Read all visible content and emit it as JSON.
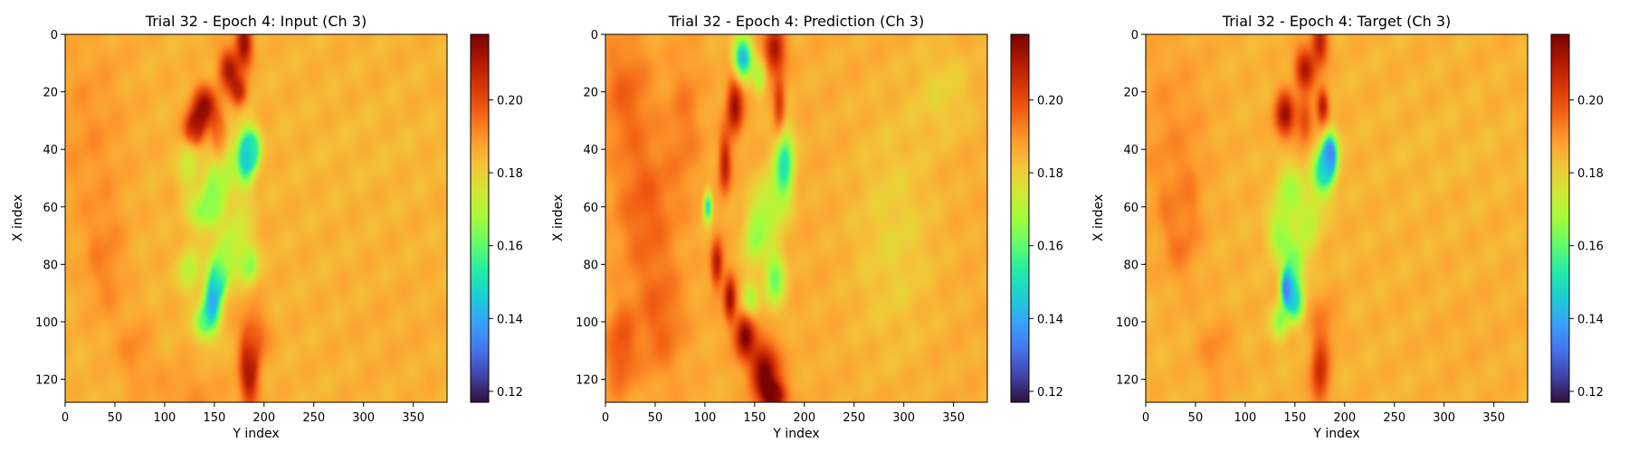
{
  "figure": {
    "colormap": [
      "#30123b",
      "#4145ab",
      "#4675ed",
      "#39a2fc",
      "#1bcfd4",
      "#24eca6",
      "#61fc6c",
      "#a4fc3b",
      "#d1e834",
      "#f3c63a",
      "#fe9b2d",
      "#f36315",
      "#d93806",
      "#b11901",
      "#7a0402"
    ],
    "color_range": [
      0.117,
      0.218
    ]
  },
  "chart_data": [
    {
      "type": "heatmap",
      "title": "Trial 32 - Epoch 4: Input (Ch 3)",
      "xlabel": "Y index",
      "ylabel": "X index",
      "xlim": [
        0,
        384
      ],
      "ylim": [
        128,
        0
      ],
      "xticks": [
        "0",
        "50",
        "100",
        "150",
        "200",
        "250",
        "300",
        "350"
      ],
      "yticks": [
        "0",
        "20",
        "40",
        "60",
        "80",
        "100",
        "120"
      ],
      "colorbar_ticks": [
        "0.12",
        "0.14",
        "0.16",
        "0.18",
        "0.20"
      ],
      "field": {
        "background": 0.185,
        "features": [
          {
            "x": 25,
            "y": 35,
            "value": 0.19,
            "rx": 40,
            "ry": 35
          },
          {
            "x": 40,
            "y": 80,
            "value": 0.192,
            "rx": 20,
            "ry": 20
          },
          {
            "x": 70,
            "y": 110,
            "value": 0.191,
            "rx": 18,
            "ry": 12
          },
          {
            "x": 120,
            "y": 125,
            "value": 0.19,
            "rx": 40,
            "ry": 10
          },
          {
            "x": 180,
            "y": 3,
            "value": 0.215,
            "rx": 8,
            "ry": 8
          },
          {
            "x": 165,
            "y": 12,
            "value": 0.212,
            "rx": 10,
            "ry": 7
          },
          {
            "x": 175,
            "y": 20,
            "value": 0.208,
            "rx": 8,
            "ry": 5
          },
          {
            "x": 140,
            "y": 25,
            "value": 0.214,
            "rx": 12,
            "ry": 7
          },
          {
            "x": 130,
            "y": 33,
            "value": 0.216,
            "rx": 10,
            "ry": 6
          },
          {
            "x": 155,
            "y": 35,
            "value": 0.205,
            "rx": 8,
            "ry": 8
          },
          {
            "x": 160,
            "y": 45,
            "value": 0.17,
            "rx": 15,
            "ry": 12
          },
          {
            "x": 182,
            "y": 42,
            "value": 0.138,
            "rx": 8,
            "ry": 9
          },
          {
            "x": 190,
            "y": 40,
            "value": 0.155,
            "rx": 6,
            "ry": 6
          },
          {
            "x": 125,
            "y": 45,
            "value": 0.172,
            "rx": 10,
            "ry": 10
          },
          {
            "x": 150,
            "y": 55,
            "value": 0.166,
            "rx": 10,
            "ry": 8
          },
          {
            "x": 140,
            "y": 62,
            "value": 0.164,
            "rx": 14,
            "ry": 6
          },
          {
            "x": 175,
            "y": 70,
            "value": 0.174,
            "rx": 12,
            "ry": 12
          },
          {
            "x": 185,
            "y": 80,
            "value": 0.163,
            "rx": 8,
            "ry": 6
          },
          {
            "x": 160,
            "y": 78,
            "value": 0.168,
            "rx": 12,
            "ry": 8
          },
          {
            "x": 125,
            "y": 82,
            "value": 0.17,
            "rx": 10,
            "ry": 8
          },
          {
            "x": 148,
            "y": 93,
            "value": 0.14,
            "rx": 8,
            "ry": 10
          },
          {
            "x": 155,
            "y": 85,
            "value": 0.15,
            "rx": 7,
            "ry": 6
          },
          {
            "x": 138,
            "y": 100,
            "value": 0.162,
            "rx": 8,
            "ry": 6
          },
          {
            "x": 185,
            "y": 118,
            "value": 0.213,
            "rx": 9,
            "ry": 12
          },
          {
            "x": 190,
            "y": 105,
            "value": 0.196,
            "rx": 15,
            "ry": 10
          },
          {
            "x": 300,
            "y": 40,
            "value": 0.184,
            "rx": 80,
            "ry": 15
          },
          {
            "x": 330,
            "y": 105,
            "value": 0.186,
            "rx": 60,
            "ry": 20
          }
        ]
      }
    },
    {
      "type": "heatmap",
      "title": "Trial 32 - Epoch 4: Prediction (Ch 3)",
      "xlabel": "Y index",
      "ylabel": "X index",
      "xlim": [
        0,
        384
      ],
      "ylim": [
        128,
        0
      ],
      "xticks": [
        "0",
        "50",
        "100",
        "150",
        "200",
        "250",
        "300",
        "350"
      ],
      "yticks": [
        "0",
        "20",
        "40",
        "60",
        "80",
        "100",
        "120"
      ],
      "colorbar_ticks": [
        "0.12",
        "0.14",
        "0.16",
        "0.18",
        "0.20"
      ],
      "field": {
        "background": 0.186,
        "features": [
          {
            "x": 20,
            "y": 20,
            "value": 0.196,
            "rx": 25,
            "ry": 20
          },
          {
            "x": 40,
            "y": 60,
            "value": 0.197,
            "rx": 30,
            "ry": 25
          },
          {
            "x": 55,
            "y": 100,
            "value": 0.196,
            "rx": 25,
            "ry": 20
          },
          {
            "x": 80,
            "y": 30,
            "value": 0.193,
            "rx": 18,
            "ry": 25
          },
          {
            "x": 15,
            "y": 110,
            "value": 0.199,
            "rx": 15,
            "ry": 15
          },
          {
            "x": 170,
            "y": 5,
            "value": 0.214,
            "rx": 10,
            "ry": 8
          },
          {
            "x": 175,
            "y": 25,
            "value": 0.206,
            "rx": 6,
            "ry": 10
          },
          {
            "x": 130,
            "y": 25,
            "value": 0.214,
            "rx": 8,
            "ry": 10
          },
          {
            "x": 120,
            "y": 45,
            "value": 0.21,
            "rx": 6,
            "ry": 10
          },
          {
            "x": 138,
            "y": 8,
            "value": 0.14,
            "rx": 9,
            "ry": 7
          },
          {
            "x": 155,
            "y": 15,
            "value": 0.168,
            "rx": 6,
            "ry": 6
          },
          {
            "x": 180,
            "y": 45,
            "value": 0.15,
            "rx": 9,
            "ry": 12
          },
          {
            "x": 165,
            "y": 60,
            "value": 0.17,
            "rx": 14,
            "ry": 12
          },
          {
            "x": 150,
            "y": 70,
            "value": 0.166,
            "rx": 10,
            "ry": 10
          },
          {
            "x": 170,
            "y": 85,
            "value": 0.162,
            "rx": 10,
            "ry": 10
          },
          {
            "x": 145,
            "y": 92,
            "value": 0.168,
            "rx": 8,
            "ry": 6
          },
          {
            "x": 103,
            "y": 60,
            "value": 0.148,
            "rx": 4,
            "ry": 5
          },
          {
            "x": 112,
            "y": 80,
            "value": 0.212,
            "rx": 6,
            "ry": 8
          },
          {
            "x": 125,
            "y": 92,
            "value": 0.214,
            "rx": 6,
            "ry": 8
          },
          {
            "x": 140,
            "y": 105,
            "value": 0.216,
            "rx": 10,
            "ry": 8
          },
          {
            "x": 160,
            "y": 117,
            "value": 0.218,
            "rx": 14,
            "ry": 10
          },
          {
            "x": 170,
            "y": 126,
            "value": 0.218,
            "rx": 12,
            "ry": 5
          },
          {
            "x": 290,
            "y": 70,
            "value": 0.18,
            "rx": 40,
            "ry": 40
          },
          {
            "x": 340,
            "y": 20,
            "value": 0.18,
            "rx": 30,
            "ry": 15
          }
        ]
      }
    },
    {
      "type": "heatmap",
      "title": "Trial 32 - Epoch 4: Target (Ch 3)",
      "xlabel": "Y index",
      "ylabel": "X index",
      "xlim": [
        0,
        384
      ],
      "ylim": [
        128,
        0
      ],
      "xticks": [
        "0",
        "50",
        "100",
        "150",
        "200",
        "250",
        "300",
        "350"
      ],
      "yticks": [
        "0",
        "20",
        "40",
        "60",
        "80",
        "100",
        "120"
      ],
      "colorbar_ticks": [
        "0.12",
        "0.14",
        "0.16",
        "0.18",
        "0.20"
      ],
      "field": {
        "background": 0.185,
        "features": [
          {
            "x": 25,
            "y": 35,
            "value": 0.19,
            "rx": 40,
            "ry": 35
          },
          {
            "x": 35,
            "y": 65,
            "value": 0.194,
            "rx": 18,
            "ry": 20
          },
          {
            "x": 70,
            "y": 110,
            "value": 0.191,
            "rx": 18,
            "ry": 12
          },
          {
            "x": 175,
            "y": 3,
            "value": 0.21,
            "rx": 8,
            "ry": 8
          },
          {
            "x": 160,
            "y": 12,
            "value": 0.212,
            "rx": 10,
            "ry": 7
          },
          {
            "x": 140,
            "y": 28,
            "value": 0.213,
            "rx": 10,
            "ry": 8
          },
          {
            "x": 160,
            "y": 30,
            "value": 0.202,
            "rx": 8,
            "ry": 8
          },
          {
            "x": 178,
            "y": 25,
            "value": 0.212,
            "rx": 6,
            "ry": 6
          },
          {
            "x": 185,
            "y": 42,
            "value": 0.125,
            "rx": 7,
            "ry": 7
          },
          {
            "x": 178,
            "y": 48,
            "value": 0.15,
            "rx": 10,
            "ry": 8
          },
          {
            "x": 145,
            "y": 55,
            "value": 0.168,
            "rx": 14,
            "ry": 10
          },
          {
            "x": 135,
            "y": 70,
            "value": 0.166,
            "rx": 12,
            "ry": 8
          },
          {
            "x": 150,
            "y": 80,
            "value": 0.162,
            "rx": 10,
            "ry": 8
          },
          {
            "x": 165,
            "y": 65,
            "value": 0.172,
            "rx": 12,
            "ry": 10
          },
          {
            "x": 142,
            "y": 88,
            "value": 0.125,
            "rx": 6,
            "ry": 6
          },
          {
            "x": 150,
            "y": 93,
            "value": 0.15,
            "rx": 8,
            "ry": 7
          },
          {
            "x": 135,
            "y": 100,
            "value": 0.165,
            "rx": 8,
            "ry": 6
          },
          {
            "x": 175,
            "y": 118,
            "value": 0.206,
            "rx": 9,
            "ry": 12
          },
          {
            "x": 180,
            "y": 100,
            "value": 0.192,
            "rx": 15,
            "ry": 10
          },
          {
            "x": 300,
            "y": 40,
            "value": 0.184,
            "rx": 80,
            "ry": 15
          },
          {
            "x": 330,
            "y": 105,
            "value": 0.186,
            "rx": 60,
            "ry": 20
          }
        ]
      }
    }
  ]
}
